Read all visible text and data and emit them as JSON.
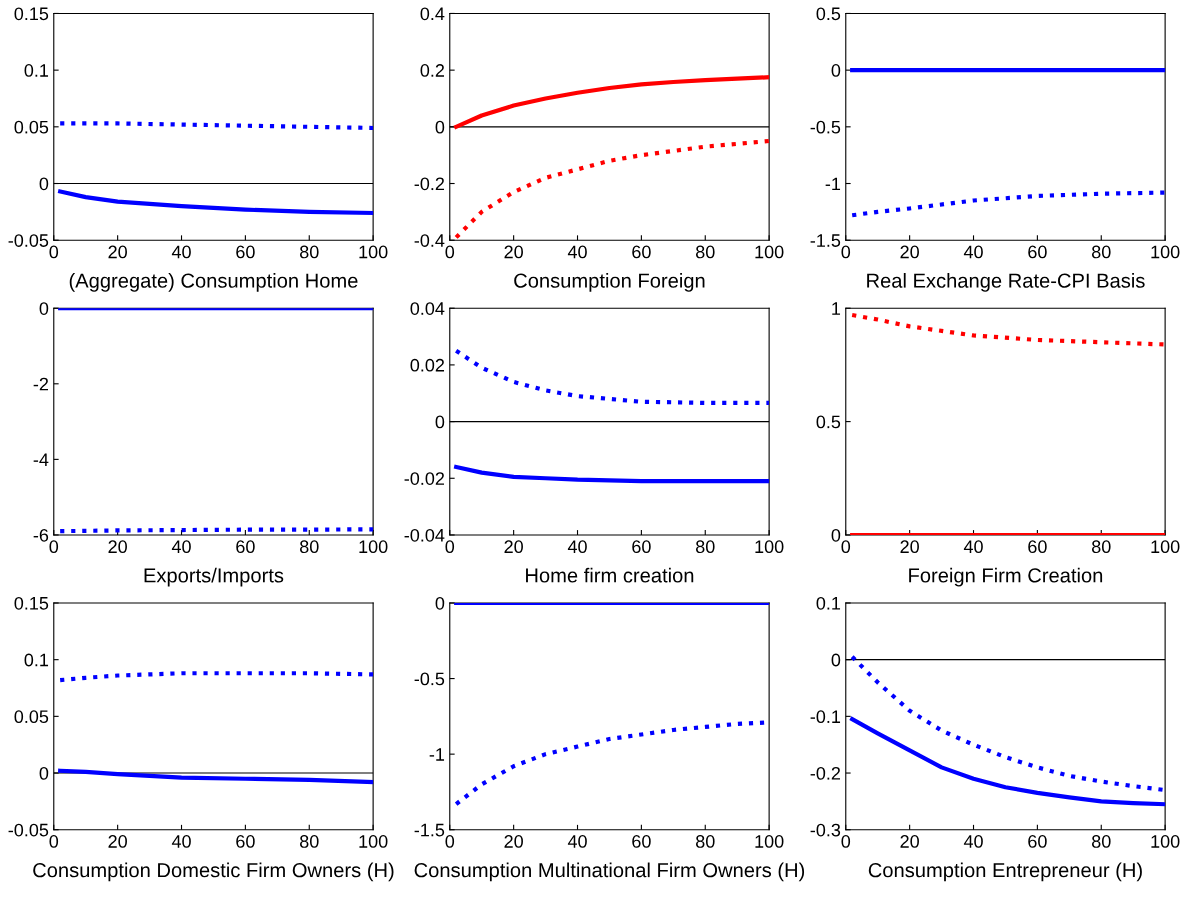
{
  "chart_data": [
    {
      "type": "line",
      "xlabel": "(Aggregate) Consumption Home",
      "xlim": [
        0,
        100
      ],
      "xticks": [
        0,
        20,
        40,
        60,
        80,
        100
      ],
      "ylim": [
        -0.05,
        0.15
      ],
      "yticks": [
        -0.05,
        0,
        0.05,
        0.1,
        0.15
      ],
      "ref_lines": [
        {
          "axis": "y",
          "value": 0,
          "color": "#000000"
        }
      ],
      "series": [
        {
          "color": "#0000ff",
          "line_style": "dotted",
          "x": [
            2,
            10,
            20,
            40,
            60,
            80,
            100
          ],
          "values": [
            0.053,
            0.053,
            0.053,
            0.052,
            0.051,
            0.05,
            0.049
          ]
        },
        {
          "color": "#0000ff",
          "line_style": "solid",
          "x": [
            2,
            10,
            20,
            40,
            60,
            80,
            100
          ],
          "values": [
            -0.007,
            -0.012,
            -0.016,
            -0.02,
            -0.023,
            -0.025,
            -0.026
          ]
        }
      ]
    },
    {
      "type": "line",
      "xlabel": "Consumption Foreign",
      "xlim": [
        0,
        100
      ],
      "xticks": [
        0,
        20,
        40,
        60,
        80,
        100
      ],
      "ylim": [
        -0.4,
        0.4
      ],
      "yticks": [
        -0.4,
        -0.2,
        0,
        0.2,
        0.4
      ],
      "ref_lines": [
        {
          "axis": "y",
          "value": 0,
          "color": "#000000"
        }
      ],
      "series": [
        {
          "color": "#ff0000",
          "line_style": "solid",
          "x": [
            2,
            10,
            20,
            30,
            40,
            50,
            60,
            70,
            80,
            90,
            100
          ],
          "values": [
            0,
            0.04,
            0.075,
            0.1,
            0.12,
            0.137,
            0.15,
            0.158,
            0.165,
            0.17,
            0.175
          ]
        },
        {
          "color": "#ff0000",
          "line_style": "dotted",
          "x": [
            2,
            10,
            20,
            30,
            40,
            50,
            60,
            70,
            80,
            90,
            100
          ],
          "values": [
            -0.39,
            -0.3,
            -0.23,
            -0.18,
            -0.15,
            -0.12,
            -0.1,
            -0.085,
            -0.07,
            -0.06,
            -0.05
          ]
        }
      ]
    },
    {
      "type": "line",
      "xlabel": "Real Exchange Rate-CPI Basis",
      "xlim": [
        0,
        100
      ],
      "xticks": [
        0,
        20,
        40,
        60,
        80,
        100
      ],
      "ylim": [
        -1.5,
        0.5
      ],
      "yticks": [
        -1.5,
        -1,
        -0.5,
        0,
        0.5
      ],
      "series": [
        {
          "color": "#0000ff",
          "line_style": "solid",
          "x": [
            2,
            100
          ],
          "values": [
            0,
            0
          ]
        },
        {
          "color": "#0000ff",
          "line_style": "dotted",
          "x": [
            2,
            10,
            20,
            40,
            60,
            80,
            100
          ],
          "values": [
            -1.28,
            -1.25,
            -1.22,
            -1.15,
            -1.11,
            -1.09,
            -1.08
          ]
        }
      ]
    },
    {
      "type": "line",
      "xlabel": "Exports/Imports",
      "xlim": [
        0,
        100
      ],
      "xticks": [
        0,
        20,
        40,
        60,
        80,
        100
      ],
      "ylim": [
        -6,
        0
      ],
      "yticks": [
        -6,
        -4,
        -2,
        0
      ],
      "series": [
        {
          "color": "#0000ff",
          "line_style": "solid",
          "x": [
            2,
            100
          ],
          "values": [
            0,
            0
          ]
        },
        {
          "color": "#0000ff",
          "line_style": "dotted",
          "x": [
            2,
            20,
            40,
            60,
            80,
            100
          ],
          "values": [
            -5.9,
            -5.88,
            -5.87,
            -5.86,
            -5.86,
            -5.85
          ]
        }
      ]
    },
    {
      "type": "line",
      "xlabel": "Home firm creation",
      "xlim": [
        0,
        100
      ],
      "xticks": [
        0,
        20,
        40,
        60,
        80,
        100
      ],
      "ylim": [
        -0.04,
        0.04
      ],
      "yticks": [
        -0.04,
        -0.02,
        0,
        0.02,
        0.04
      ],
      "ref_lines": [
        {
          "axis": "y",
          "value": 0,
          "color": "#000000"
        }
      ],
      "series": [
        {
          "color": "#0000ff",
          "line_style": "dotted",
          "x": [
            2,
            10,
            20,
            30,
            40,
            50,
            60,
            70,
            80,
            100
          ],
          "values": [
            0.025,
            0.019,
            0.014,
            0.011,
            0.009,
            0.008,
            0.007,
            0.0068,
            0.0066,
            0.0066
          ]
        },
        {
          "color": "#0000ff",
          "line_style": "solid",
          "x": [
            2,
            10,
            20,
            30,
            40,
            60,
            80,
            100
          ],
          "values": [
            -0.016,
            -0.018,
            -0.0195,
            -0.02,
            -0.0205,
            -0.021,
            -0.021,
            -0.021
          ]
        }
      ]
    },
    {
      "type": "line",
      "xlabel": "Foreign Firm Creation",
      "xlim": [
        0,
        100
      ],
      "xticks": [
        0,
        20,
        40,
        60,
        80,
        100
      ],
      "ylim": [
        0,
        1
      ],
      "yticks": [
        0,
        0.5,
        1
      ],
      "series": [
        {
          "color": "#ff0000",
          "line_style": "dotted",
          "x": [
            2,
            10,
            20,
            40,
            60,
            80,
            100
          ],
          "values": [
            0.97,
            0.95,
            0.92,
            0.88,
            0.86,
            0.85,
            0.84
          ]
        },
        {
          "color": "#ff0000",
          "line_style": "solid",
          "x": [
            2,
            100
          ],
          "values": [
            0,
            0
          ]
        }
      ]
    },
    {
      "type": "line",
      "xlabel": "Consumption Domestic Firm Owners (H)",
      "xlim": [
        0,
        100
      ],
      "xticks": [
        0,
        20,
        40,
        60,
        80,
        100
      ],
      "ylim": [
        -0.05,
        0.15
      ],
      "yticks": [
        -0.05,
        0,
        0.05,
        0.1,
        0.15
      ],
      "ref_lines": [
        {
          "axis": "y",
          "value": 0,
          "color": "#000000"
        }
      ],
      "series": [
        {
          "color": "#0000ff",
          "line_style": "dotted",
          "x": [
            2,
            10,
            20,
            40,
            60,
            80,
            100
          ],
          "values": [
            0.082,
            0.084,
            0.086,
            0.088,
            0.088,
            0.088,
            0.087
          ]
        },
        {
          "color": "#0000ff",
          "line_style": "solid",
          "x": [
            2,
            10,
            20,
            40,
            60,
            80,
            100
          ],
          "values": [
            0.002,
            0.001,
            -0.001,
            -0.004,
            -0.005,
            -0.006,
            -0.008
          ]
        }
      ]
    },
    {
      "type": "line",
      "xlabel": "Consumption Multinational Firm Owners (H)",
      "xlim": [
        0,
        100
      ],
      "xticks": [
        0,
        20,
        40,
        60,
        80,
        100
      ],
      "ylim": [
        -1.5,
        0
      ],
      "yticks": [
        -1.5,
        -1,
        -0.5,
        0
      ],
      "series": [
        {
          "color": "#0000ff",
          "line_style": "solid",
          "x": [
            2,
            100
          ],
          "values": [
            0,
            0
          ]
        },
        {
          "color": "#0000ff",
          "line_style": "dotted",
          "x": [
            2,
            10,
            20,
            30,
            40,
            50,
            60,
            70,
            80,
            90,
            100
          ],
          "values": [
            -1.33,
            -1.2,
            -1.08,
            -1.0,
            -0.95,
            -0.9,
            -0.87,
            -0.84,
            -0.82,
            -0.8,
            -0.79
          ]
        }
      ]
    },
    {
      "type": "line",
      "xlabel": "Consumption Entrepreneur (H)",
      "xlim": [
        0,
        100
      ],
      "xticks": [
        0,
        20,
        40,
        60,
        80,
        100
      ],
      "ylim": [
        -0.3,
        0.1
      ],
      "yticks": [
        -0.3,
        -0.2,
        -0.1,
        0,
        0.1
      ],
      "ref_lines": [
        {
          "axis": "y",
          "value": 0,
          "color": "#000000"
        }
      ],
      "series": [
        {
          "color": "#0000ff",
          "line_style": "dotted",
          "x": [
            2,
            10,
            20,
            30,
            40,
            50,
            60,
            70,
            80,
            90,
            100
          ],
          "values": [
            0.005,
            -0.04,
            -0.09,
            -0.125,
            -0.15,
            -0.172,
            -0.19,
            -0.205,
            -0.215,
            -0.223,
            -0.23
          ]
        },
        {
          "color": "#0000ff",
          "line_style": "solid",
          "x": [
            2,
            10,
            20,
            30,
            40,
            50,
            60,
            70,
            80,
            90,
            100
          ],
          "values": [
            -0.105,
            -0.13,
            -0.16,
            -0.19,
            -0.21,
            -0.225,
            -0.235,
            -0.243,
            -0.25,
            -0.253,
            -0.255
          ]
        }
      ]
    }
  ]
}
